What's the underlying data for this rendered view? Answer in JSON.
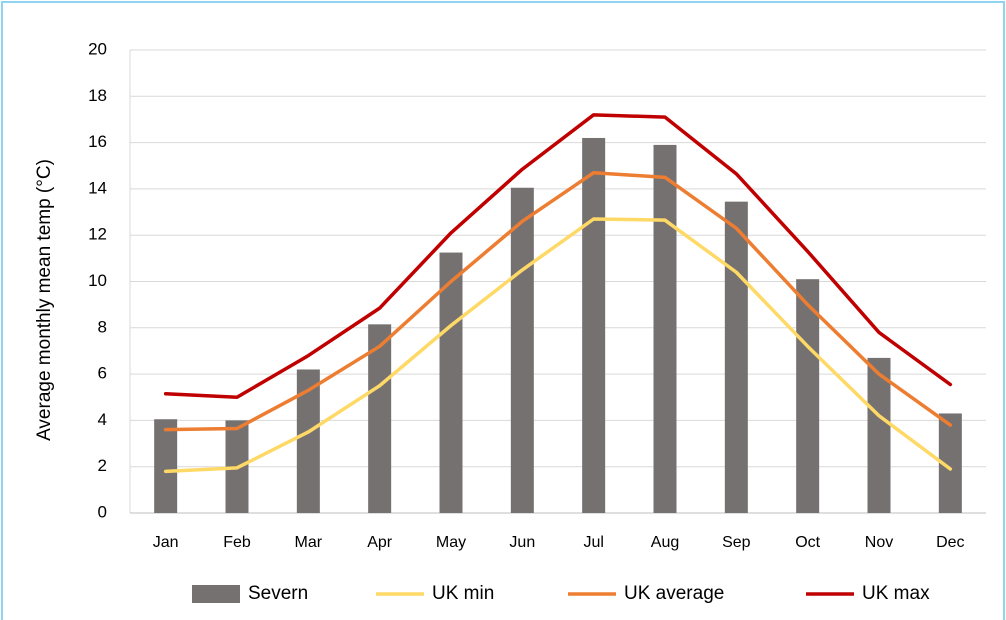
{
  "chart_data": {
    "type": "combo",
    "y_label": "Average monthly mean temp (°C)",
    "categories": [
      "Jan",
      "Feb",
      "Mar",
      "Apr",
      "May",
      "Jun",
      "Jul",
      "Aug",
      "Sep",
      "Oct",
      "Nov",
      "Dec"
    ],
    "series": [
      {
        "name": "Severn",
        "type": "bar",
        "color": "#767171",
        "values": [
          4.05,
          4.0,
          6.2,
          8.15,
          11.25,
          14.05,
          16.2,
          15.9,
          13.45,
          10.1,
          6.7,
          4.3
        ]
      },
      {
        "name": "UK min",
        "type": "line",
        "color": "#ffd966",
        "values": [
          1.8,
          1.95,
          3.5,
          5.5,
          8.1,
          10.5,
          12.7,
          12.65,
          10.4,
          7.2,
          4.2,
          1.9
        ]
      },
      {
        "name": "UK average",
        "type": "line",
        "color": "#ed7d31",
        "values": [
          3.6,
          3.65,
          5.3,
          7.2,
          10.0,
          12.6,
          14.7,
          14.5,
          12.3,
          9.0,
          6.0,
          3.8
        ]
      },
      {
        "name": "UK max",
        "type": "line",
        "color": "#c00000",
        "values": [
          5.15,
          5.0,
          6.8,
          8.85,
          12.1,
          14.85,
          17.2,
          17.1,
          14.65,
          11.3,
          7.8,
          5.55
        ]
      }
    ],
    "ylim": [
      0,
      20
    ],
    "yticks": [
      0,
      2,
      4,
      6,
      8,
      10,
      12,
      14,
      16,
      18,
      20
    ],
    "grid": true,
    "legend": "bottom"
  }
}
